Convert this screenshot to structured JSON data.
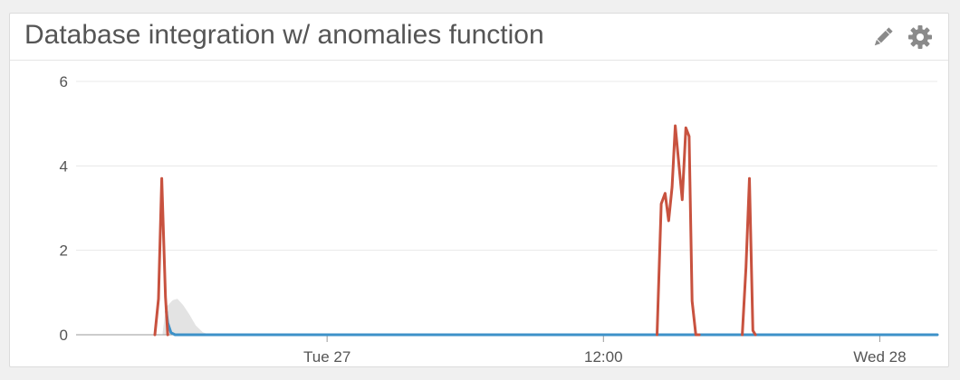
{
  "widget": {
    "title": "Database integration w/ anomalies function",
    "icons": {
      "edit": "pencil-icon",
      "settings": "gear-icon"
    }
  },
  "chart_data": {
    "type": "line",
    "y_ticks": [
      "0",
      "2",
      "4",
      "6"
    ],
    "ylim": [
      0,
      6
    ],
    "x_ticks": [
      {
        "label": "Tue 27",
        "hours": 24
      },
      {
        "label": "12:00",
        "hours": 36
      },
      {
        "label": "Wed 28",
        "hours": 48
      }
    ],
    "xlim_hours": [
      13.1,
      50.5
    ],
    "grid": true,
    "colors": {
      "anomaly": "#c8523f",
      "normal": "#3d91c8",
      "band": "#e3e3e3",
      "grid": "#e8e8e8",
      "axis": "#999999"
    },
    "series": [
      {
        "key": "anomalies",
        "color": "#c8523f",
        "x": [
          16.52,
          16.68,
          16.82,
          16.98,
          17.02,
          17.08
        ],
        "values": [
          0,
          0.85,
          3.7,
          0.9,
          0.55,
          0
        ]
      },
      {
        "key": "anomalies",
        "color": "#c8523f",
        "x": [
          38.33,
          38.51,
          38.68,
          38.83,
          38.98,
          39.12,
          39.25,
          39.42,
          39.58,
          39.72,
          39.85,
          40.01,
          40.16
        ],
        "values": [
          0,
          3.1,
          3.35,
          2.7,
          3.5,
          4.95,
          4.2,
          3.2,
          4.9,
          4.7,
          0.8,
          0,
          0
        ]
      },
      {
        "key": "anomalies",
        "color": "#c8523f",
        "x": [
          42.03,
          42.19,
          42.34,
          42.49,
          42.6
        ],
        "values": [
          0,
          1.6,
          3.7,
          0.1,
          0
        ]
      },
      {
        "key": "metric",
        "color": "#3d91c8",
        "x": [
          17.02,
          17.08,
          17.22,
          17.4,
          50.5
        ],
        "values": [
          0.55,
          0.28,
          0.05,
          0,
          0
        ]
      }
    ],
    "band": {
      "x": [
        16.86,
        17.0,
        17.3,
        17.5,
        17.75,
        18.0,
        18.3,
        18.6,
        18.9
      ],
      "upper": [
        0.05,
        0.65,
        0.82,
        0.85,
        0.7,
        0.5,
        0.22,
        0.06,
        0
      ],
      "lower": [
        0,
        0,
        0,
        0,
        0,
        0,
        0,
        0,
        0
      ]
    }
  }
}
